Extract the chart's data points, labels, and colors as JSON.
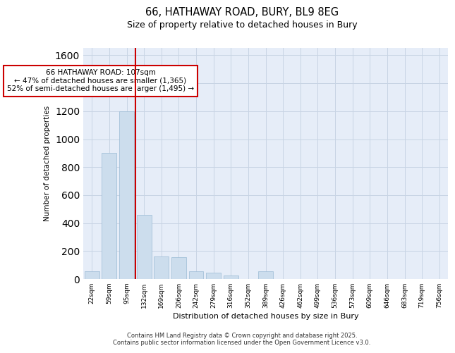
{
  "title_line1": "66, HATHAWAY ROAD, BURY, BL9 8EG",
  "title_line2": "Size of property relative to detached houses in Bury",
  "xlabel": "Distribution of detached houses by size in Bury",
  "ylabel": "Number of detached properties",
  "categories": [
    "22sqm",
    "59sqm",
    "95sqm",
    "132sqm",
    "169sqm",
    "206sqm",
    "242sqm",
    "279sqm",
    "316sqm",
    "352sqm",
    "389sqm",
    "426sqm",
    "462sqm",
    "499sqm",
    "536sqm",
    "573sqm",
    "609sqm",
    "646sqm",
    "683sqm",
    "719sqm",
    "756sqm"
  ],
  "bar_heights": [
    55,
    900,
    1200,
    460,
    160,
    155,
    55,
    45,
    25,
    0,
    55,
    0,
    0,
    0,
    0,
    0,
    0,
    0,
    0,
    0,
    0
  ],
  "bar_color": "#ccdded",
  "bar_edge_color": "#9bbbd4",
  "vline_x": 2.5,
  "vline_color": "#cc0000",
  "annotation_text": "66 HATHAWAY ROAD: 107sqm\n← 47% of detached houses are smaller (1,365)\n52% of semi-detached houses are larger (1,495) →",
  "annotation_box_color": "#cc0000",
  "annotation_box_fill": "#ffffff",
  "ylim": [
    0,
    1650
  ],
  "yticks": [
    0,
    200,
    400,
    600,
    800,
    1000,
    1200,
    1400,
    1600
  ],
  "grid_color": "#c8d4e4",
  "background_color": "#e6edf8",
  "footer_line1": "Contains HM Land Registry data © Crown copyright and database right 2025.",
  "footer_line2": "Contains public sector information licensed under the Open Government Licence v3.0."
}
